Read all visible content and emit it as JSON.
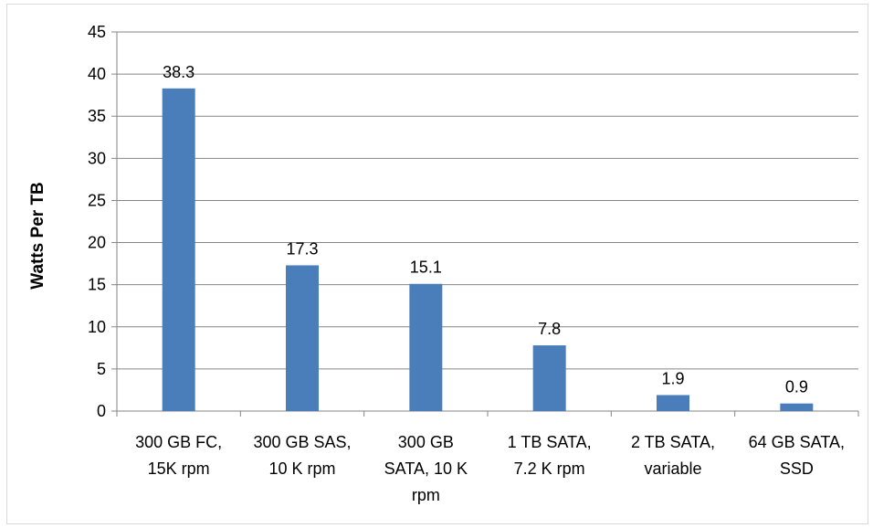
{
  "chart_data": {
    "type": "bar",
    "title": "",
    "xlabel": "",
    "ylabel": "Watts Per TB",
    "categories": [
      [
        "300 GB FC,",
        "15K rpm"
      ],
      [
        "300 GB SAS,",
        "10 K rpm"
      ],
      [
        "300 GB",
        "SATA, 10 K",
        "rpm"
      ],
      [
        "1 TB SATA,",
        "7.2 K rpm"
      ],
      [
        "2 TB SATA,",
        "variable"
      ],
      [
        "64 GB SATA,",
        "SSD"
      ]
    ],
    "values": [
      38.3,
      17.3,
      15.1,
      7.8,
      1.9,
      0.9
    ],
    "data_labels": [
      "38.3",
      "17.3",
      "15.1",
      "7.8",
      "1.9",
      "0.9"
    ],
    "ylim": [
      0,
      45
    ],
    "yticks": [
      0,
      5,
      10,
      15,
      20,
      25,
      30,
      35,
      40,
      45
    ],
    "grid": true,
    "legend": "none",
    "bar_color": "#4a7ebb",
    "grid_color": "#868686"
  }
}
